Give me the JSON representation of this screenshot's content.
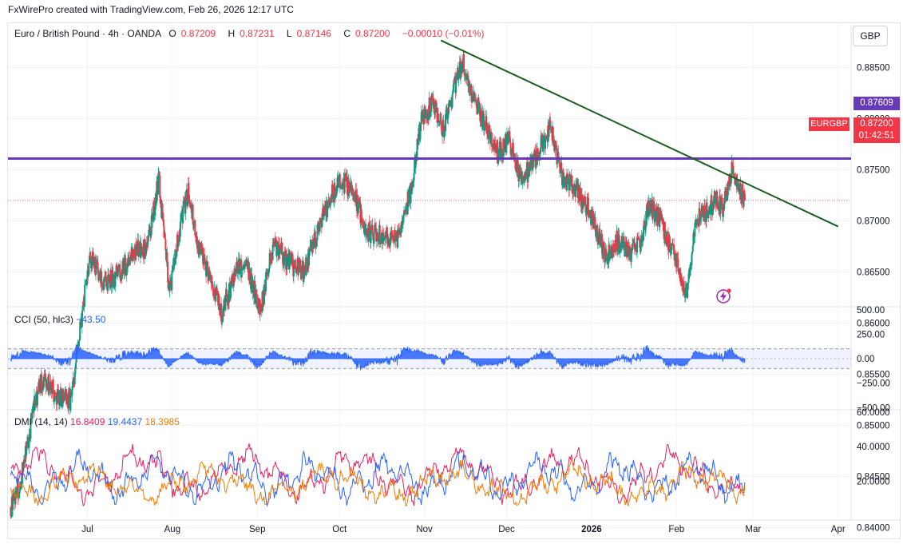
{
  "header": {
    "created_by": "FxWirePro created with TradingView.com, Feb 26, 2026 12:17 UTC"
  },
  "legend": {
    "symbol": "Euro / British Pound · 4h · OANDA",
    "o_label": "O",
    "o": "0.87209",
    "h_label": "H",
    "h": "0.87231",
    "l_label": "L",
    "l": "0.87146",
    "c_label": "C",
    "c": "0.87200",
    "change": "−0.00010 (−0.01%)"
  },
  "currency_button": "GBP",
  "price_tags": {
    "horizontal_line": "0.87609",
    "symbol": "EURGBP",
    "last": "0.87200",
    "countdown": "01:42:51"
  },
  "cci_legend": {
    "name": "CCI (50, hlc3)",
    "value": "−43.50"
  },
  "dmi_legend": {
    "name": "DMI (14, 14)",
    "v1": "16.8409",
    "v2": "19.4437",
    "v3": "18.3985"
  },
  "colors": {
    "up": "#089981",
    "down": "#f23645",
    "trendline": "#1b5e20",
    "hline": "#673ab7",
    "cci": "#2962ff",
    "dmi_plus": "#2962ff",
    "dmi_minus": "#e91e63",
    "adx": "#f57c00"
  },
  "icons": {
    "bolt": "lightning-icon"
  },
  "chart_data": [
    {
      "type": "candlestick",
      "title": "Euro / British Pound · 4h · OANDA",
      "y_ticks": [
        "0.88500",
        "0.88000",
        "0.87500",
        "0.87000",
        "0.86500",
        "0.86000",
        "0.85500",
        "0.85000",
        "0.84500",
        "0.84000"
      ],
      "x_ticks": [
        "Jul",
        "Aug",
        "Sep",
        "Oct",
        "Nov",
        "Dec",
        "2026",
        "Feb",
        "Mar",
        "Apr"
      ],
      "ylim": [
        0.8385,
        0.8895
      ],
      "anchors": [
        {
          "date": "2025-06-03",
          "close": 0.842
        },
        {
          "date": "2025-06-07",
          "close": 0.845
        },
        {
          "date": "2025-06-12",
          "close": 0.8525
        },
        {
          "date": "2025-06-15",
          "close": 0.8545
        },
        {
          "date": "2025-06-20",
          "close": 0.853
        },
        {
          "date": "2025-06-25",
          "close": 0.8525
        },
        {
          "date": "2025-06-28",
          "close": 0.859
        },
        {
          "date": "2025-07-02",
          "close": 0.8665
        },
        {
          "date": "2025-07-07",
          "close": 0.864
        },
        {
          "date": "2025-07-14",
          "close": 0.865
        },
        {
          "date": "2025-07-18",
          "close": 0.867
        },
        {
          "date": "2025-07-23",
          "close": 0.8675
        },
        {
          "date": "2025-07-27",
          "close": 0.874
        },
        {
          "date": "2025-07-31",
          "close": 0.863
        },
        {
          "date": "2025-08-04",
          "close": 0.87
        },
        {
          "date": "2025-08-07",
          "close": 0.873
        },
        {
          "date": "2025-08-10",
          "close": 0.868
        },
        {
          "date": "2025-08-15",
          "close": 0.864
        },
        {
          "date": "2025-08-19",
          "close": 0.861
        },
        {
          "date": "2025-08-24",
          "close": 0.865
        },
        {
          "date": "2025-08-28",
          "close": 0.866
        },
        {
          "date": "2025-09-02",
          "close": 0.861
        },
        {
          "date": "2025-09-07",
          "close": 0.868
        },
        {
          "date": "2025-09-12",
          "close": 0.866
        },
        {
          "date": "2025-09-18",
          "close": 0.865
        },
        {
          "date": "2025-09-23",
          "close": 0.869
        },
        {
          "date": "2025-09-28",
          "close": 0.8725
        },
        {
          "date": "2025-10-02",
          "close": 0.874
        },
        {
          "date": "2025-10-07",
          "close": 0.872
        },
        {
          "date": "2025-10-11",
          "close": 0.869
        },
        {
          "date": "2025-10-17",
          "close": 0.8685
        },
        {
          "date": "2025-10-22",
          "close": 0.868
        },
        {
          "date": "2025-10-27",
          "close": 0.873
        },
        {
          "date": "2025-10-31",
          "close": 0.88
        },
        {
          "date": "2025-11-04",
          "close": 0.8815
        },
        {
          "date": "2025-11-08",
          "close": 0.879
        },
        {
          "date": "2025-11-12",
          "close": 0.883
        },
        {
          "date": "2025-11-15",
          "close": 0.8855
        },
        {
          "date": "2025-11-19",
          "close": 0.882
        },
        {
          "date": "2025-11-24",
          "close": 0.879
        },
        {
          "date": "2025-11-28",
          "close": 0.8765
        },
        {
          "date": "2025-12-02",
          "close": 0.878
        },
        {
          "date": "2025-12-05",
          "close": 0.875
        },
        {
          "date": "2025-12-08",
          "close": 0.8745
        },
        {
          "date": "2025-12-13",
          "close": 0.877
        },
        {
          "date": "2025-12-17",
          "close": 0.879
        },
        {
          "date": "2025-12-21",
          "close": 0.8745
        },
        {
          "date": "2025-12-25",
          "close": 0.8735
        },
        {
          "date": "2025-12-29",
          "close": 0.872
        },
        {
          "date": "2026-01-02",
          "close": 0.87
        },
        {
          "date": "2026-01-06",
          "close": 0.8665
        },
        {
          "date": "2026-01-10",
          "close": 0.868
        },
        {
          "date": "2026-01-15",
          "close": 0.867
        },
        {
          "date": "2026-01-19",
          "close": 0.868
        },
        {
          "date": "2026-01-22",
          "close": 0.8715
        },
        {
          "date": "2026-01-26",
          "close": 0.87
        },
        {
          "date": "2026-01-30",
          "close": 0.8675
        },
        {
          "date": "2026-02-03",
          "close": 0.864
        },
        {
          "date": "2026-02-05",
          "close": 0.863
        },
        {
          "date": "2026-02-08",
          "close": 0.87
        },
        {
          "date": "2026-02-12",
          "close": 0.871
        },
        {
          "date": "2026-02-15",
          "close": 0.872
        },
        {
          "date": "2026-02-18",
          "close": 0.871
        },
        {
          "date": "2026-02-21",
          "close": 0.875
        },
        {
          "date": "2026-02-23",
          "close": 0.874
        },
        {
          "date": "2026-02-26",
          "close": 0.872
        }
      ],
      "horizontal_line": 0.87609,
      "last_price": 0.872,
      "trendline": [
        {
          "date": "2025-11-07",
          "price": 0.88765
        },
        {
          "date": "2026-04-01",
          "price": 0.86945
        }
      ]
    },
    {
      "type": "line",
      "title": "CCI (50, hlc3)",
      "y_ticks": [
        "500.00",
        "250.00",
        "0.00",
        "−250.00",
        "−500.00"
      ],
      "ylim": [
        -520,
        520
      ],
      "bands": [
        100,
        -100
      ],
      "series": [
        {
          "name": "CCI (50, hlc3)",
          "last": -43.5
        }
      ]
    },
    {
      "type": "line",
      "title": "DMI (14, 14)",
      "y_ticks": [
        "60.0000",
        "40.0000",
        "20.0000"
      ],
      "ylim": [
        0,
        62
      ],
      "series": [
        {
          "name": "DMI (14, 14)",
          "last": 16.8409
        },
        {
          "name": "DMI (14, 14)",
          "last": 19.4437
        },
        {
          "name": "DMI (14, 14)",
          "last": 18.3985
        }
      ]
    }
  ]
}
